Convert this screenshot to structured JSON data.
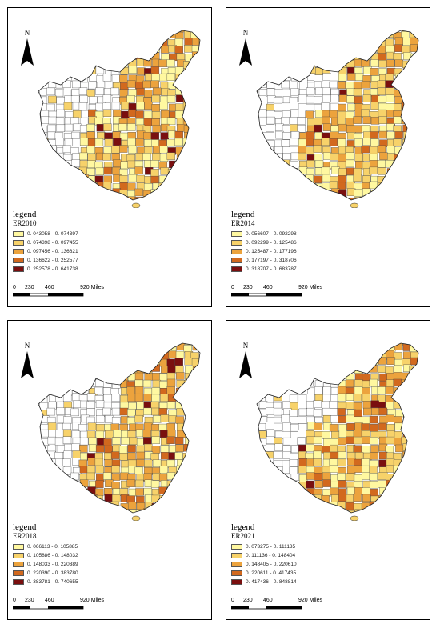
{
  "north_label": "N",
  "legend_title": "legend",
  "scale_labels": [
    "0",
    "230",
    "460",
    "920 Miles"
  ],
  "colors": [
    "#fff8a0",
    "#f7d26a",
    "#eca33d",
    "#d2691e",
    "#7a0f0f"
  ],
  "maps": [
    {
      "name": "ER2010",
      "ranges": [
        "0. 043058 - 0. 074397",
        "0. 074398 - 0. 097455",
        "0. 097456 - 0. 136621",
        "0. 136622 - 0. 252577",
        "0. 252578 - 0. 641738"
      ]
    },
    {
      "name": "ER2014",
      "ranges": [
        "0. 056607 - 0. 092298",
        "0. 092299 - 0. 125486",
        "0. 125487 - 0. 177196",
        "0. 177197 - 0. 318706",
        "0. 318707 - 0. 683787"
      ]
    },
    {
      "name": "ER2018",
      "ranges": [
        "0. 066113 - 0. 105885",
        "0. 105886 - 0. 148032",
        "0. 148033 - 0. 220389",
        "0. 220390 - 0. 383780",
        "0. 383781 - 0. 740655"
      ]
    },
    {
      "name": "ER2021",
      "ranges": [
        "0. 073275 - 0. 111135",
        "0. 111136 - 0. 148404",
        "0. 148405 - 0. 220610",
        "0. 220611 - 0. 417435",
        "0. 417436 - 0. 848814"
      ]
    }
  ]
}
